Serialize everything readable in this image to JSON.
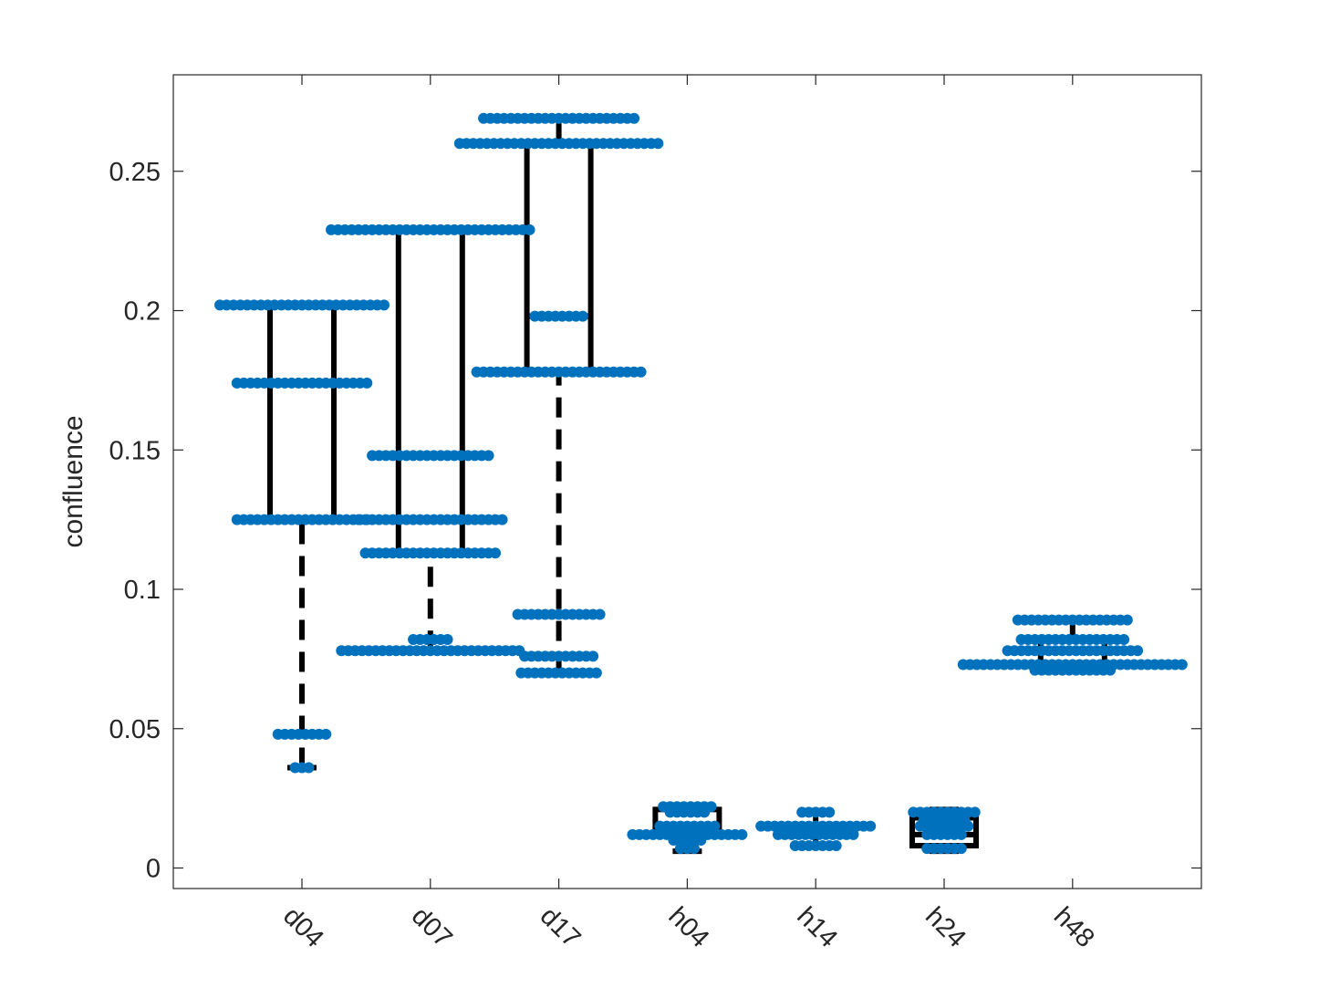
{
  "chart_data": {
    "type": "boxplot-swarm",
    "ylabel": "confluence",
    "xlabel": "",
    "ylim": [
      -0.008,
      0.285
    ],
    "yticks": [
      0,
      0.05,
      0.1,
      0.15,
      0.2,
      0.25
    ],
    "ytick_labels": [
      "0",
      "0.05",
      "0.1",
      "0.15",
      "0.2",
      "0.25"
    ],
    "categories": [
      "d04",
      "d07",
      "d17",
      "h04",
      "h14",
      "h24",
      "h48"
    ],
    "grid": false,
    "colors": {
      "points": "#0072BD",
      "box": "#000000",
      "axis": "#262626"
    },
    "boxes": [
      {
        "category": "d04",
        "whisker_low": 0.036,
        "q1": 0.125,
        "median": 0.174,
        "q3": 0.202,
        "whisker_high": 0.202
      },
      {
        "category": "d07",
        "whisker_low": 0.078,
        "q1": 0.113,
        "median": 0.125,
        "q3": 0.229,
        "whisker_high": 0.229
      },
      {
        "category": "d17",
        "whisker_low": 0.07,
        "q1": 0.178,
        "median": 0.198,
        "q3": 0.26,
        "whisker_high": 0.269
      },
      {
        "category": "h04",
        "whisker_low": 0.006,
        "q1": 0.012,
        "median": 0.015,
        "q3": 0.021,
        "whisker_high": 0.022
      },
      {
        "category": "h14",
        "whisker_low": 0.008,
        "q1": 0.012,
        "median": 0.013,
        "q3": 0.015,
        "whisker_high": 0.02
      },
      {
        "category": "h24",
        "whisker_low": 0.006,
        "q1": 0.008,
        "median": 0.012,
        "q3": 0.018,
        "whisker_high": 0.021
      },
      {
        "category": "h48",
        "whisker_low": 0.071,
        "q1": 0.073,
        "median": 0.078,
        "q3": 0.082,
        "whisker_high": 0.089
      }
    ],
    "points": [
      {
        "category": "d04",
        "levels": [
          {
            "y": 0.202,
            "n": 25
          },
          {
            "y": 0.174,
            "n": 20
          },
          {
            "y": 0.125,
            "n": 20
          },
          {
            "y": 0.048,
            "n": 8
          },
          {
            "y": 0.036,
            "n": 3
          }
        ]
      },
      {
        "category": "d07",
        "levels": [
          {
            "y": 0.229,
            "n": 30
          },
          {
            "y": 0.148,
            "n": 18
          },
          {
            "y": 0.125,
            "n": 22
          },
          {
            "y": 0.113,
            "n": 20
          },
          {
            "y": 0.082,
            "n": 6
          },
          {
            "y": 0.078,
            "n": 27
          }
        ]
      },
      {
        "category": "d17",
        "levels": [
          {
            "y": 0.269,
            "n": 23
          },
          {
            "y": 0.26,
            "n": 30
          },
          {
            "y": 0.198,
            "n": 8
          },
          {
            "y": 0.178,
            "n": 25
          },
          {
            "y": 0.091,
            "n": 13
          },
          {
            "y": 0.076,
            "n": 11
          },
          {
            "y": 0.07,
            "n": 12
          }
        ]
      },
      {
        "category": "h04",
        "levels": [
          {
            "y": 0.022,
            "n": 8
          },
          {
            "y": 0.02,
            "n": 6
          },
          {
            "y": 0.015,
            "n": 9
          },
          {
            "y": 0.014,
            "n": 8
          },
          {
            "y": 0.012,
            "n": 17
          },
          {
            "y": 0.01,
            "n": 5
          },
          {
            "y": 0.007,
            "n": 3
          }
        ]
      },
      {
        "category": "h14",
        "levels": [
          {
            "y": 0.02,
            "n": 5
          },
          {
            "y": 0.015,
            "n": 17
          },
          {
            "y": 0.014,
            "n": 8
          },
          {
            "y": 0.012,
            "n": 12
          },
          {
            "y": 0.008,
            "n": 7
          }
        ]
      },
      {
        "category": "h24",
        "levels": [
          {
            "y": 0.02,
            "n": 10
          },
          {
            "y": 0.017,
            "n": 7
          },
          {
            "y": 0.015,
            "n": 8
          },
          {
            "y": 0.012,
            "n": 6
          },
          {
            "y": 0.007,
            "n": 6
          }
        ]
      },
      {
        "category": "h48",
        "levels": [
          {
            "y": 0.089,
            "n": 17
          },
          {
            "y": 0.082,
            "n": 16
          },
          {
            "y": 0.078,
            "n": 20
          },
          {
            "y": 0.073,
            "n": 33
          },
          {
            "y": 0.071,
            "n": 12
          }
        ]
      }
    ]
  }
}
